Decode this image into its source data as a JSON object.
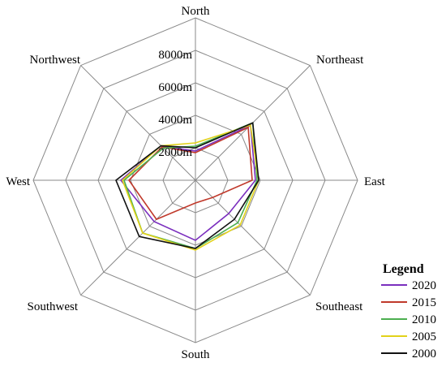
{
  "chart_data": {
    "type": "radar",
    "categories": [
      "North",
      "Northeast",
      "East",
      "Southeast",
      "South",
      "Southwest",
      "West",
      "Northwest"
    ],
    "radial_ticks": [
      "2000m",
      "4000m",
      "6000m",
      "8000m"
    ],
    "rmax": 10000,
    "series": [
      {
        "name": "2020",
        "color": "#7b2fbe",
        "values": [
          1800,
          4800,
          3700,
          2900,
          3700,
          3600,
          4600,
          3000
        ]
      },
      {
        "name": "2015",
        "color": "#c0392b",
        "values": [
          1700,
          4600,
          3500,
          1500,
          1400,
          3400,
          4100,
          2900
        ]
      },
      {
        "name": "2010",
        "color": "#4caf50",
        "values": [
          2100,
          5000,
          3800,
          3700,
          4200,
          4600,
          4400,
          2800
        ]
      },
      {
        "name": "2005",
        "color": "#e2d21a",
        "values": [
          2300,
          4800,
          3900,
          3900,
          4300,
          4600,
          4500,
          3000
        ]
      },
      {
        "name": "2000",
        "color": "#111111",
        "values": [
          2000,
          5000,
          3900,
          3400,
          4200,
          4900,
          4900,
          3000
        ]
      }
    ],
    "legend_title": "Legend",
    "legend_position": "bottom-right"
  }
}
